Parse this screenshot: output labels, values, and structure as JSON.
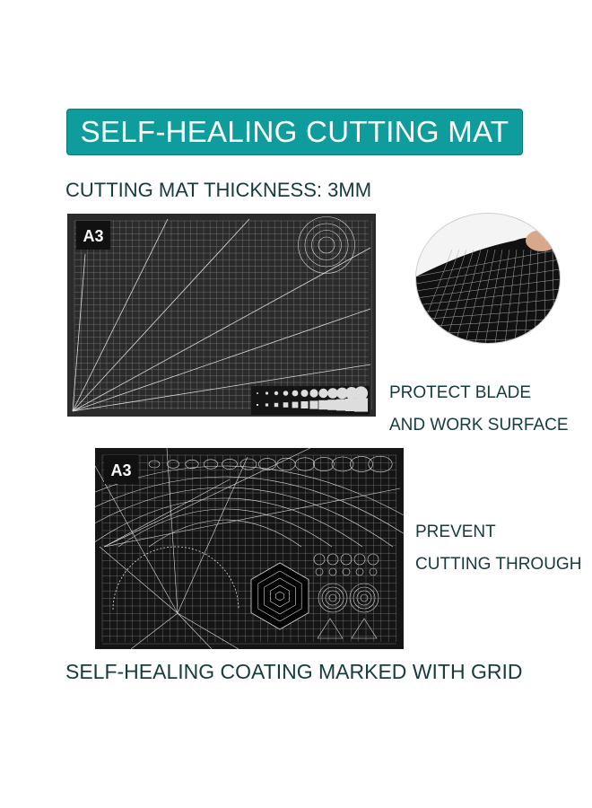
{
  "banner": {
    "title": "SELF-HEALING CUTTING MAT",
    "color": "#0f9c9c"
  },
  "thickness_heading": "CUTTING MAT THICKNESS: 3MM",
  "features": [
    {
      "line1": "PROTECT BLADE",
      "line2": "AND WORK SURFACE"
    },
    {
      "line1": "PREVENT",
      "line2": "CUTTING THROUGH"
    }
  ],
  "bottom_caption": "SELF-HEALING COATING MARKED WITH GRID",
  "mats": [
    {
      "size_label": "A3",
      "style": "angle lines and circle/square templates"
    },
    {
      "size_label": "A3",
      "style": "arcs, hexagon and circle templates"
    }
  ],
  "text_color": "#163b3d"
}
